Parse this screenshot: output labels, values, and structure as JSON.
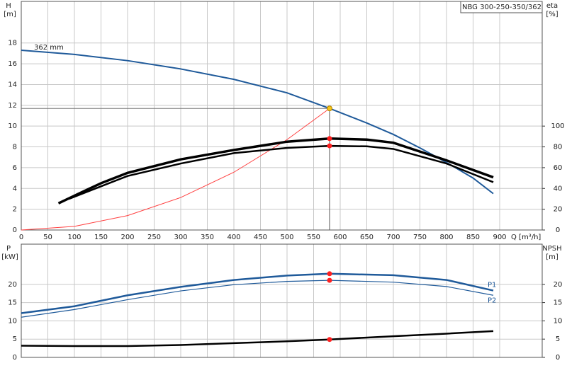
{
  "chart_data": [
    {
      "type": "line",
      "title": "NBG 300-250-350/362",
      "y_label": "H",
      "y_unit": "[m]",
      "y2_label": "eta",
      "y2_unit": "[%]",
      "x_label": "Q [m³/h]",
      "xlim": [
        0,
        980
      ],
      "xticks": [
        0,
        50,
        100,
        150,
        200,
        250,
        300,
        350,
        400,
        450,
        500,
        550,
        600,
        650,
        700,
        750,
        800,
        850,
        900
      ],
      "ylim": [
        0,
        22
      ],
      "yticks": [
        0,
        2,
        4,
        6,
        8,
        10,
        12,
        14,
        16,
        18
      ],
      "y2lim": [
        0,
        220
      ],
      "y2ticks": [
        0,
        20,
        40,
        60,
        80,
        100
      ],
      "grid": true,
      "series": [
        {
          "name": "362 mm",
          "color": "#1f5a9a",
          "width": 2,
          "x": [
            0,
            100,
            200,
            300,
            400,
            500,
            580,
            650,
            700,
            750,
            800,
            850,
            888
          ],
          "values": [
            17.3,
            16.9,
            16.3,
            15.5,
            14.5,
            13.2,
            11.7,
            10.3,
            9.2,
            7.9,
            6.5,
            5.0,
            3.5
          ]
        },
        {
          "color": "#ff4040",
          "width": 1,
          "x": [
            0,
            100,
            200,
            300,
            400,
            500,
            580
          ],
          "values": [
            0,
            0.35,
            1.39,
            3.13,
            5.56,
            8.7,
            11.7
          ]
        },
        {
          "color": "#000000",
          "width": 3.5,
          "axis": "y2",
          "x": [
            70,
            100,
            150,
            200,
            300,
            400,
            500,
            580,
            650,
            700,
            800,
            888
          ],
          "values": [
            25.7,
            33,
            45,
            55,
            68,
            77,
            85,
            88,
            87,
            84,
            67,
            50.7
          ]
        },
        {
          "color": "#000000",
          "width": 2.5,
          "axis": "y2",
          "x": [
            90,
            150,
            200,
            300,
            400,
            500,
            580,
            650,
            700,
            800,
            888
          ],
          "values": [
            30,
            42,
            52,
            64,
            74,
            79,
            81,
            80.5,
            78,
            64,
            46
          ]
        }
      ],
      "duty_points": [
        {
          "x": 580,
          "y": 11.7,
          "color": "#f5c518"
        },
        {
          "x": 580,
          "y": 88,
          "axis": "y2",
          "color": "#ff2020"
        },
        {
          "x": 580,
          "y": 81,
          "axis": "y2",
          "color": "#ff2020"
        }
      ]
    },
    {
      "type": "line",
      "y_label": "P",
      "y_unit": "[kW]",
      "y2_label": "NPSH",
      "y2_unit": "[m]",
      "xlim": [
        0,
        980
      ],
      "xticks": [
        0,
        50,
        100,
        150,
        200,
        250,
        300,
        350,
        400,
        450,
        500,
        550,
        600,
        650,
        700,
        750,
        800,
        850,
        900
      ],
      "ylim": [
        0,
        31
      ],
      "yticks": [
        0,
        5,
        10,
        15,
        20
      ],
      "y2lim": [
        0,
        31
      ],
      "y2ticks": [
        0,
        5,
        10,
        15,
        20
      ],
      "grid": true,
      "series": [
        {
          "name": "P1",
          "color": "#1f5a9a",
          "width": 2.5,
          "x": [
            0,
            100,
            200,
            300,
            400,
            500,
            580,
            700,
            800,
            888
          ],
          "values": [
            12.1,
            14.0,
            17.0,
            19.3,
            21.2,
            22.4,
            22.9,
            22.5,
            21.2,
            18.3
          ]
        },
        {
          "name": "P2",
          "color": "#1f5a9a",
          "width": 1.2,
          "x": [
            0,
            100,
            200,
            300,
            400,
            500,
            580,
            700,
            800,
            888
          ],
          "values": [
            11.0,
            13.1,
            15.8,
            18.2,
            19.9,
            20.8,
            21.1,
            20.6,
            19.4,
            17.0
          ]
        },
        {
          "color": "#000000",
          "width": 2.5,
          "axis": "y2",
          "x": [
            0,
            100,
            200,
            300,
            400,
            500,
            580,
            700,
            800,
            888
          ],
          "values": [
            3.2,
            3.1,
            3.1,
            3.4,
            3.9,
            4.4,
            4.9,
            5.8,
            6.5,
            7.2
          ]
        }
      ],
      "duty_points": [
        {
          "x": 580,
          "y": 22.9,
          "color": "#ff2020"
        },
        {
          "x": 580,
          "y": 21.1,
          "color": "#ff2020"
        },
        {
          "x": 580,
          "y": 4.9,
          "axis": "y2",
          "color": "#ff2020"
        }
      ]
    }
  ]
}
